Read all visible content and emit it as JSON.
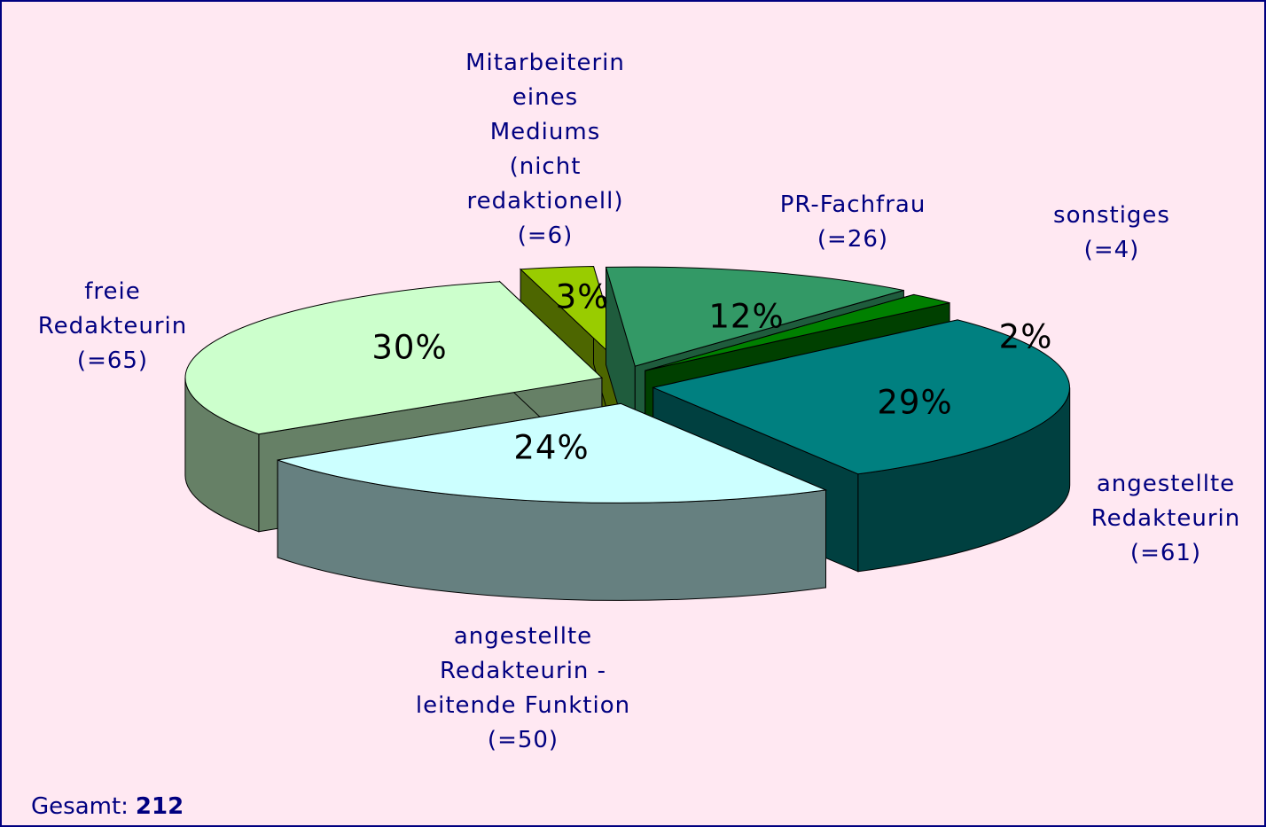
{
  "chart_data": {
    "type": "pie3d",
    "categories": [
      "PR-Fachfrau",
      "sonstiges",
      "angestellte Redakteurin",
      "angestellte Redakteurin - leitende Funktion",
      "freie Redakteurin",
      "Mitarbeiterin eines Mediums (nicht redaktionell)"
    ],
    "values": [
      12,
      2,
      29,
      24,
      30,
      3
    ],
    "value_labels": [
      "12%",
      "2%",
      "29%",
      "24%",
      "30%",
      "3%"
    ],
    "counts": [
      26,
      4,
      61,
      50,
      65,
      6
    ],
    "count_labels": [
      "(=26)",
      "(=4)",
      "(=61)",
      "(=50)",
      "(=65)",
      "(=6)"
    ],
    "colors": [
      "#339966",
      "#008000",
      "#008080",
      "#ccffff",
      "#ccffcc",
      "#99cc00"
    ],
    "side_colors": [
      "#1f5c3d",
      "#004000",
      "#004040",
      "#668080",
      "#668066",
      "#4d6600"
    ],
    "total_label": "Gesamt:",
    "total": 212
  }
}
